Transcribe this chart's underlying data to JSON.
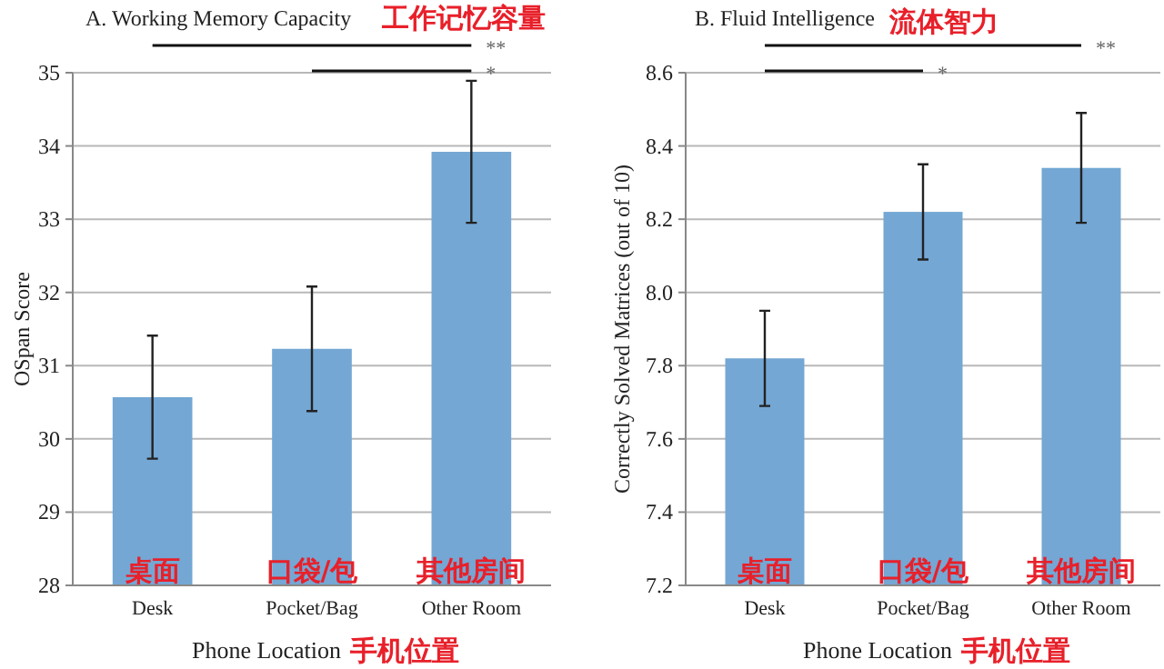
{
  "chart_data": [
    {
      "type": "bar",
      "title": "A. Working Memory Capacity",
      "subtitle": "工作记忆容量",
      "xlabel": "Phone Location",
      "ylabel": "OSpan Score",
      "categories": [
        "Desk",
        "Pocket/Bag",
        "Other Room"
      ],
      "values": [
        30.57,
        31.23,
        33.92
      ],
      "errors": [
        0.84,
        0.85,
        0.97
      ],
      "color": "#74a7d4",
      "ylim": [
        28,
        35
      ],
      "yticks": [
        28,
        29,
        30,
        31,
        32,
        33,
        34,
        35
      ],
      "grid": "y",
      "annotations": [
        "**",
        "*",
        "手机位置",
        {
          "text": "桌面",
          "x": "Desk",
          "y": 28
        },
        {
          "text": "口袋/包",
          "x": "Pocket/Bag",
          "y": 28
        },
        {
          "text": "其他房间",
          "x": "Other Room",
          "y": 28
        }
      ]
    },
    {
      "type": "bar",
      "title": "B. Fluid Intelligence",
      "subtitle": "流体智力",
      "xlabel": "Phone Location",
      "ylabel": "Correctly Solved Matrices (out of 10)",
      "categories": [
        "Desk",
        "Pocket/Bag",
        "Other Room"
      ],
      "values": [
        7.82,
        8.22,
        8.34
      ],
      "errors": [
        0.13,
        0.13,
        0.15
      ],
      "color": "#74a7d4",
      "ylim": [
        7.2,
        8.6
      ],
      "yticks": [
        {
          "value": 7.2,
          "label": "7.2"
        },
        {
          "value": 7.4,
          "label": "7.4"
        },
        {
          "value": 7.6,
          "label": "7.6"
        },
        {
          "value": 7.8,
          "label": "7.8"
        },
        {
          "value": 8.0,
          "label": "8.0"
        },
        {
          "value": 8.2,
          "label": "8.2"
        },
        {
          "value": 8.4,
          "label": "8.4"
        },
        {
          "value": 8.6,
          "label": "8.6"
        }
      ],
      "grid": "y",
      "annotations": [
        "**",
        "*",
        "手机位置",
        {
          "text": "桌面",
          "x": "Desk",
          "y": 7.2
        },
        {
          "text": "口袋/包",
          "x": "Pocket/Bag",
          "y": 7.2
        },
        {
          "text": "其他房间",
          "x": "Other Room",
          "y": 7.2
        }
      ]
    }
  ]
}
